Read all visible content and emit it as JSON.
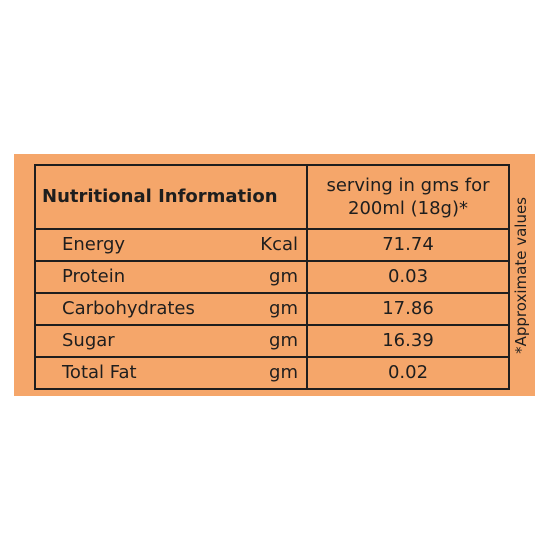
{
  "table": {
    "title": "Nutritional Information",
    "serving_header_line1": "serving in gms for",
    "serving_header_line2": "200ml (18g)*",
    "rows": [
      {
        "name": "Energy",
        "unit": "Kcal",
        "value": "71.74"
      },
      {
        "name": "Protein",
        "unit": "gm",
        "value": "0.03"
      },
      {
        "name": "Carbohydrates",
        "unit": "gm",
        "value": "17.86"
      },
      {
        "name": "Sugar",
        "unit": "gm",
        "value": "16.39"
      },
      {
        "name": "Total Fat",
        "unit": "gm",
        "value": "0.02"
      }
    ]
  },
  "side_note": "*Approximate values",
  "colors": {
    "panel_background": "#f5a66a",
    "text": "#1e1e1e"
  }
}
